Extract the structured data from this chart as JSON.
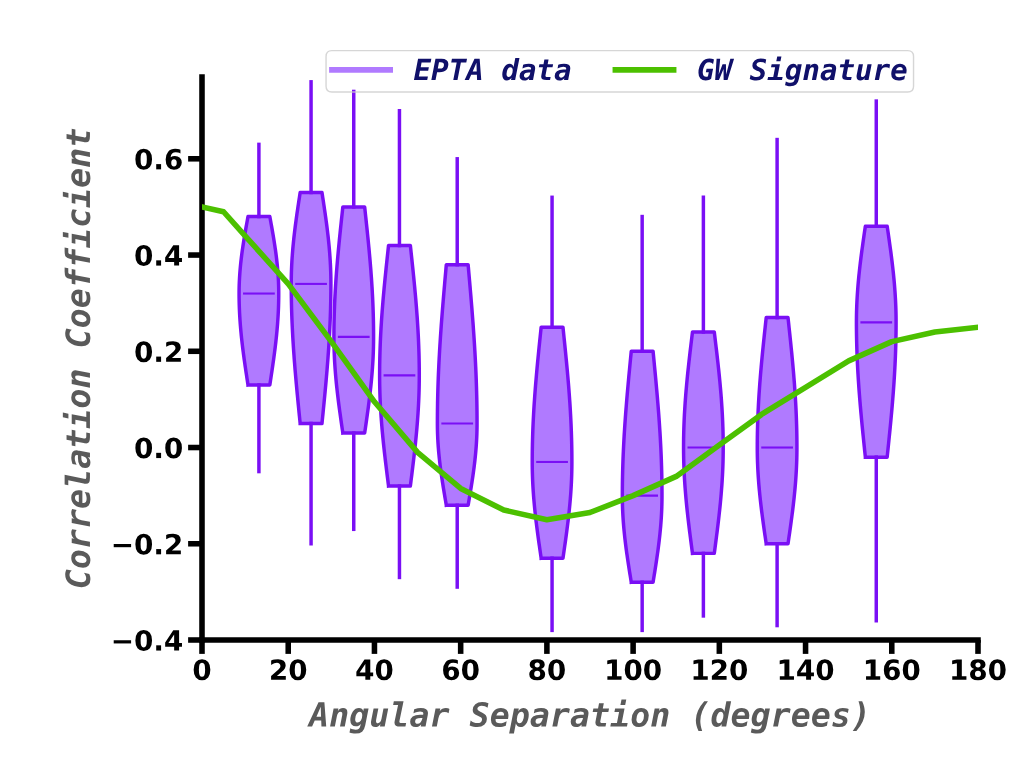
{
  "chart_data": {
    "type": "box",
    "xlabel": "Angular Separation (degrees)",
    "ylabel": "Correlation Coefficient",
    "xlim": [
      0,
      180
    ],
    "xticks": [
      0,
      20,
      40,
      60,
      80,
      100,
      120,
      140,
      160,
      180
    ],
    "ylim": [
      -0.4,
      0.77
    ],
    "yticks": [
      {
        "value": -0.4,
        "label": "−0.4"
      },
      {
        "value": -0.2,
        "label": "−0.2"
      },
      {
        "value": 0,
        "label": "0.0"
      },
      0.2,
      0.4,
      0.6
    ],
    "legend": "top",
    "grid": false,
    "series": [
      {
        "name": "EPTA data",
        "color": "#b07aff",
        "x": [
          13.2,
          25.3,
          35.2,
          45.8,
          59.2,
          81.2,
          102.1,
          116.3,
          133.4,
          156.4
        ],
        "boxes": [
          {
            "low": -0.05,
            "q1": 0.13,
            "median": 0.32,
            "q3": 0.48,
            "high": 0.63
          },
          {
            "low": -0.2,
            "q1": 0.05,
            "median": 0.34,
            "q3": 0.53,
            "high": 0.76
          },
          {
            "low": -0.17,
            "q1": 0.03,
            "median": 0.23,
            "q3": 0.5,
            "high": 0.74
          },
          {
            "low": -0.27,
            "q1": -0.08,
            "median": 0.15,
            "q3": 0.42,
            "high": 0.7
          },
          {
            "low": -0.29,
            "q1": -0.12,
            "median": 0.05,
            "q3": 0.38,
            "high": 0.6
          },
          {
            "low": -0.38,
            "q1": -0.23,
            "median": -0.03,
            "q3": 0.25,
            "high": 0.52
          },
          {
            "low": -0.38,
            "q1": -0.28,
            "median": -0.1,
            "q3": 0.2,
            "high": 0.48
          },
          {
            "low": -0.35,
            "q1": -0.22,
            "median": 0.0,
            "q3": 0.24,
            "high": 0.52
          },
          {
            "low": -0.37,
            "q1": -0.2,
            "median": 0.0,
            "q3": 0.27,
            "high": 0.64
          },
          {
            "low": -0.36,
            "q1": -0.02,
            "median": 0.26,
            "q3": 0.46,
            "high": 0.72
          }
        ]
      },
      {
        "name": "GW Signature",
        "type": "line",
        "color": "#4cc000",
        "x": [
          0,
          5,
          10,
          20,
          30,
          40,
          50,
          60,
          70,
          80,
          90,
          100,
          110,
          120,
          130,
          140,
          150,
          160,
          170,
          180
        ],
        "values": [
          0.5,
          0.49,
          0.44,
          0.34,
          0.22,
          0.095,
          -0.01,
          -0.085,
          -0.13,
          -0.15,
          -0.135,
          -0.1,
          -0.06,
          0.005,
          0.07,
          0.125,
          0.18,
          0.22,
          0.24,
          0.25
        ]
      }
    ]
  }
}
